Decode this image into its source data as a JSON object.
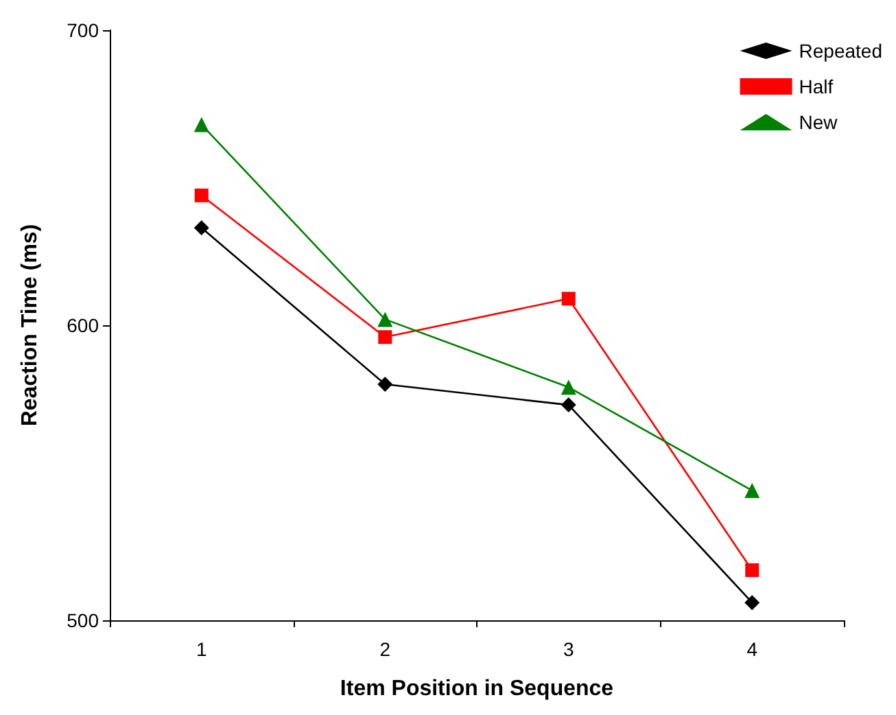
{
  "chart_data": {
    "type": "line",
    "xlabel": "Item Position in Sequence",
    "ylabel": "Reaction Time (ms)",
    "categories": [
      "1",
      "2",
      "3",
      "4"
    ],
    "series": [
      {
        "name": "Repeated",
        "color": "#000000",
        "marker": "diamond",
        "values": [
          633,
          580,
          573,
          506
        ]
      },
      {
        "name": "Half",
        "color": "#ff0000",
        "marker": "square",
        "values": [
          644,
          596,
          609,
          517
        ]
      },
      {
        "name": "New",
        "color": "#008000",
        "marker": "triangle",
        "values": [
          668,
          602,
          579,
          544
        ]
      }
    ],
    "ylim": [
      500,
      700
    ],
    "yticks": [
      500,
      600,
      700
    ],
    "grid": false,
    "legend": "top right",
    "line_style": "solid"
  }
}
